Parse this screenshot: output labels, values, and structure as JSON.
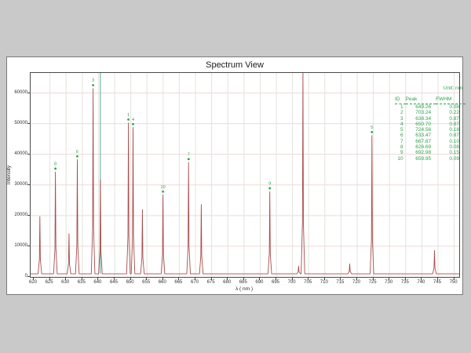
{
  "window": {
    "background": "#c9c9c9",
    "panel_background": "#ffffff"
  },
  "title": "Spectrum View",
  "legend": {
    "unit_label": "Unit: nm",
    "columns": [
      "ID",
      "Peak",
      "FWHM"
    ],
    "rows": [
      {
        "id": "1",
        "peak": "649.26",
        "fwhm": "0.08"
      },
      {
        "id": "2",
        "peak": "703.24",
        "fwhm": "0.22"
      },
      {
        "id": "3",
        "peak": "638.34",
        "fwhm": "0.87"
      },
      {
        "id": "4",
        "peak": "650.70",
        "fwhm": "0.87"
      },
      {
        "id": "5",
        "peak": "724.56",
        "fwhm": "0.18"
      },
      {
        "id": "6",
        "peak": "633.47",
        "fwhm": "0.87"
      },
      {
        "id": "7",
        "peak": "667.87",
        "fwhm": "0.10"
      },
      {
        "id": "8",
        "peak": "626.69",
        "fwhm": "0.08"
      },
      {
        "id": "9",
        "peak": "692.98",
        "fwhm": "0.15"
      },
      {
        "id": "10",
        "peak": "659.95",
        "fwhm": "0.09"
      }
    ],
    "text_color": "#2fa24f"
  },
  "chart_data": {
    "type": "line",
    "title": "Spectrum View",
    "xlabel": "λ ( nm )",
    "ylabel": "Intensity",
    "xlim": [
      620,
      751
    ],
    "ylim": [
      0,
      66500
    ],
    "x_ticks": [
      620,
      625,
      630,
      635,
      640,
      645,
      650,
      655,
      660,
      665,
      670,
      675,
      680,
      685,
      690,
      695,
      700,
      705,
      710,
      715,
      720,
      725,
      730,
      735,
      740,
      745,
      750
    ],
    "y_ticks": [
      0,
      10000,
      20000,
      30000,
      40000,
      50000,
      60000
    ],
    "baseline_intensity": 1000,
    "grid": true,
    "line_color": "#a84c4c",
    "marker_color": "#2fa24f",
    "grid_color_v": "#e3e3dc",
    "grid_color_h": "#ecdada",
    "cursor_line": {
      "x": 640.6,
      "color": "#5aa7a2"
    },
    "peaks": [
      {
        "l": 621.9,
        "v": 19800,
        "label": ""
      },
      {
        "l": 626.69,
        "v": 34300,
        "label": "8"
      },
      {
        "l": 630.9,
        "v": 14200,
        "label": ""
      },
      {
        "l": 633.47,
        "v": 38300,
        "label": "6"
      },
      {
        "l": 638.34,
        "v": 61500,
        "label": "3"
      },
      {
        "l": 640.6,
        "v": 31800,
        "label": ""
      },
      {
        "l": 649.26,
        "v": 50300,
        "label": "1"
      },
      {
        "l": 650.7,
        "v": 48800,
        "label": "4"
      },
      {
        "l": 653.6,
        "v": 22000,
        "label": ""
      },
      {
        "l": 659.95,
        "v": 26800,
        "label": "10"
      },
      {
        "l": 667.87,
        "v": 37400,
        "label": "7"
      },
      {
        "l": 671.8,
        "v": 23700,
        "label": ""
      },
      {
        "l": 692.98,
        "v": 27900,
        "label": "9"
      },
      {
        "l": 701.9,
        "v": 3600,
        "label": ""
      },
      {
        "l": 703.24,
        "v": 68000,
        "label": "2",
        "clipped": true
      },
      {
        "l": 717.7,
        "v": 4300,
        "label": ""
      },
      {
        "l": 724.56,
        "v": 46200,
        "label": "5"
      },
      {
        "l": 743.9,
        "v": 8700,
        "label": ""
      }
    ]
  }
}
